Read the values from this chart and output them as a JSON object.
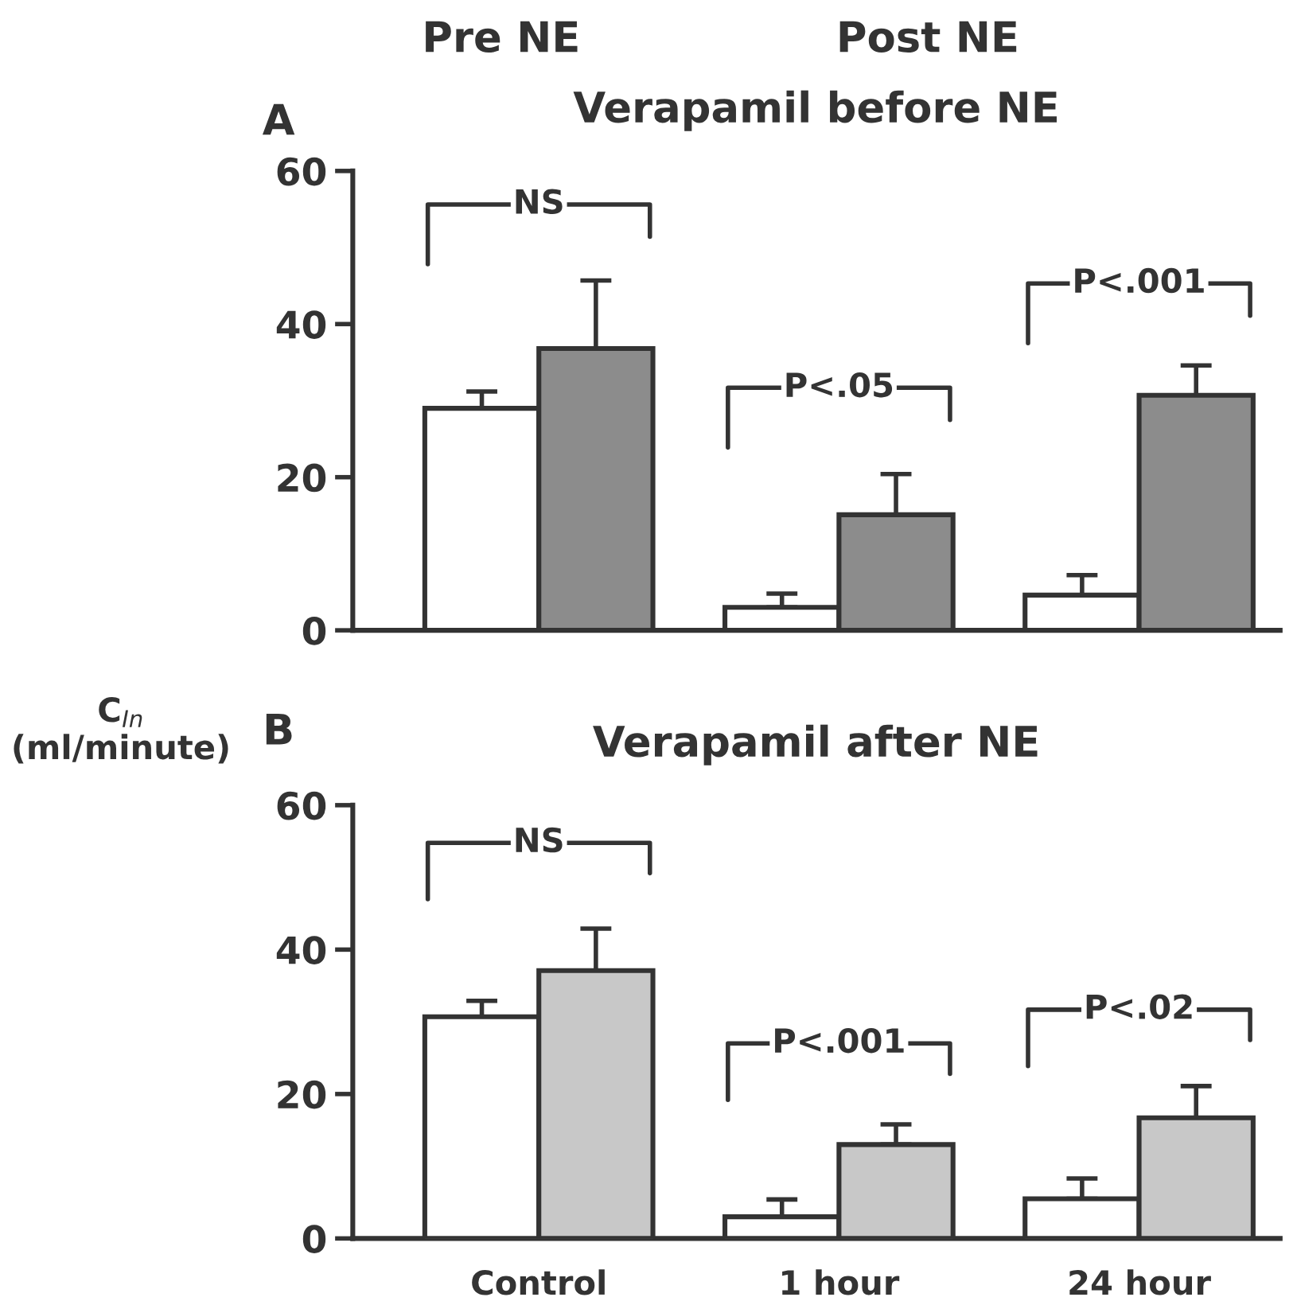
{
  "chart_data": [
    {
      "type": "bar",
      "title": "Verapamil before NE",
      "ylabel": "C$_{In}$\n(ml/minute)",
      "categories": [
        null,
        null,
        null
      ],
      "tick_labels": "y",
      "series": [
        {
          "color": "#ffffff",
          "values": [
            29.0,
            3.0,
            4.6
          ],
          "errors": [
            [
              29.0,
              31.2
            ],
            [
              3.0,
              4.8
            ],
            [
              4.6,
              7.2
            ]
          ]
        },
        {
          "color": "#8c8c8c",
          "values": [
            36.8,
            15.1,
            30.7
          ],
          "errors": [
            [
              36.8,
              45.7
            ],
            [
              15.1,
              20.4
            ],
            [
              30.7,
              34.6
            ]
          ]
        }
      ],
      "ylim": [
        0,
        60
      ],
      "yticks": [
        0,
        20,
        40,
        60
      ],
      "grid": false,
      "annotations": [
        "A",
        "Pre NE",
        "Post NE",
        "NS",
        "P<.05",
        "P<.001"
      ]
    },
    {
      "type": "bar",
      "title": "Verapamil after NE",
      "categories": [
        "Control",
        "1 hour",
        "24 hour"
      ],
      "series": [
        {
          "color": "#ffffff",
          "values": [
            30.7,
            3.0,
            5.5
          ],
          "errors": [
            [
              30.7,
              32.9
            ],
            [
              3.0,
              5.4
            ],
            [
              5.5,
              8.3
            ]
          ]
        },
        {
          "color": "#c8c8c8",
          "values": [
            37.1,
            13.0,
            16.7
          ],
          "errors": [
            [
              37.1,
              42.9
            ],
            [
              13.0,
              15.8
            ],
            [
              16.7,
              21.1
            ]
          ]
        }
      ],
      "ylim": [
        0,
        60
      ],
      "yticks": [
        0,
        20,
        40,
        60
      ],
      "grid": false,
      "annotations": [
        "B",
        "NS",
        "P<.001",
        "P<.02"
      ]
    }
  ]
}
